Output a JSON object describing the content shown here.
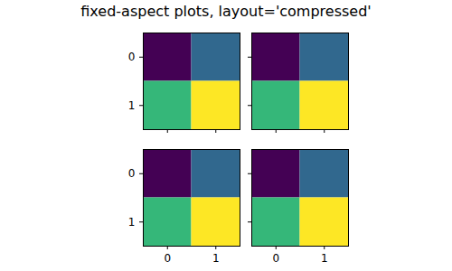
{
  "title": "fixed-aspect plots, layout='compressed'",
  "chart_data": [
    {
      "type": "heatmap",
      "cells": [
        [
          0,
          1
        ],
        [
          2,
          3
        ]
      ],
      "color": "viridis",
      "color_range": [
        0,
        3
      ],
      "xlim": [
        -0.5,
        1.5
      ],
      "ylim": [
        1.5,
        -0.5
      ],
      "xticks": [
        0,
        1
      ],
      "yticks": [
        0,
        1
      ],
      "tick_labels": "y"
    },
    {
      "type": "heatmap",
      "cells": [
        [
          0,
          1
        ],
        [
          2,
          3
        ]
      ],
      "color": "viridis",
      "color_range": [
        0,
        3
      ],
      "xlim": [
        -0.5,
        1.5
      ],
      "ylim": [
        1.5,
        -0.5
      ],
      "xticks": [
        0,
        1
      ],
      "yticks": [
        0,
        1
      ],
      "tick_labels": false
    },
    {
      "type": "heatmap",
      "cells": [
        [
          0,
          1
        ],
        [
          2,
          3
        ]
      ],
      "color": "viridis",
      "color_range": [
        0,
        3
      ],
      "xlim": [
        -0.5,
        1.5
      ],
      "ylim": [
        1.5,
        -0.5
      ],
      "xticks": [
        0,
        1
      ],
      "yticks": [
        0,
        1
      ],
      "tick_labels": true
    },
    {
      "type": "heatmap",
      "cells": [
        [
          0,
          1
        ],
        [
          2,
          3
        ]
      ],
      "color": "viridis",
      "color_range": [
        0,
        3
      ],
      "xlim": [
        -0.5,
        1.5
      ],
      "ylim": [
        1.5,
        -0.5
      ],
      "xticks": [
        0,
        1
      ],
      "yticks": [
        0,
        1
      ],
      "tick_labels": "x"
    }
  ]
}
